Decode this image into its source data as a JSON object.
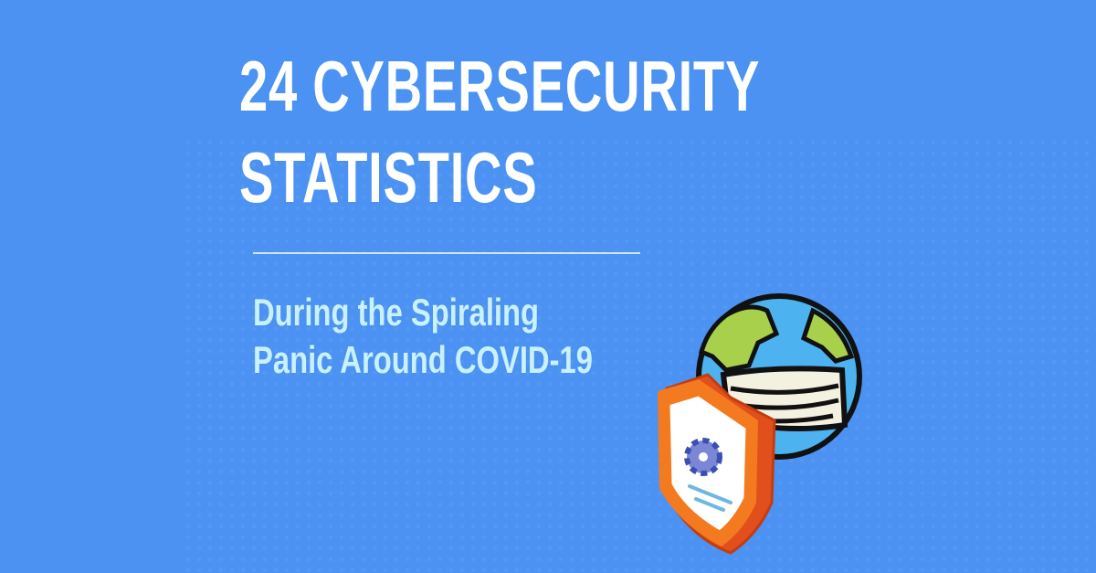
{
  "title": {
    "line1": "24 CYBERSECURITY",
    "line2": "STATISTICS"
  },
  "subtitle": {
    "line1": "During the Spiraling",
    "line2": "Panic Around COVID-19"
  },
  "icons": [
    "globe-with-mask-icon",
    "security-shield-gear-icon"
  ],
  "colors": {
    "background": "#4b92f2",
    "title": "#ffffff",
    "subtitle": "#c9f1ff"
  }
}
